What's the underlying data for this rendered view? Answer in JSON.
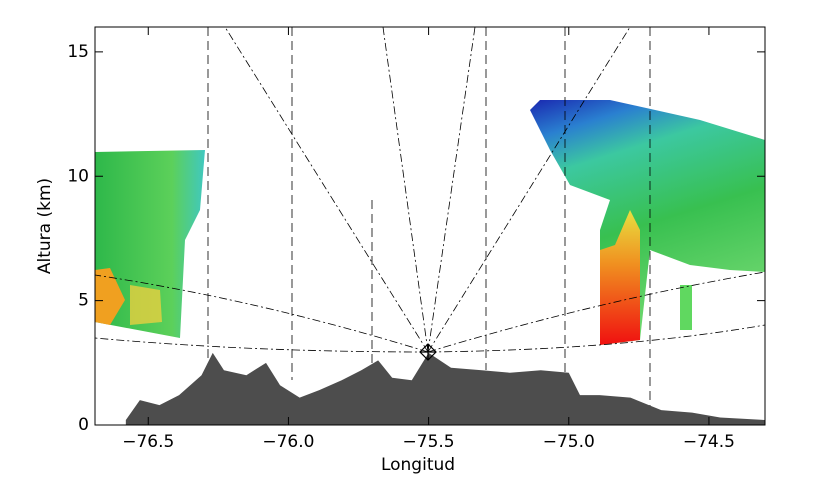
{
  "chart_data": {
    "type": "area",
    "xlabel": "Longitud",
    "ylabel": "Altura (km)",
    "xlim": [
      -76.69,
      -74.3
    ],
    "ylim": [
      0,
      16
    ],
    "xticks": [
      {
        "value": -76.5,
        "label": "−76.5"
      },
      {
        "value": -76.0,
        "label": "−76.0"
      },
      {
        "value": -75.5,
        "label": "−75.5"
      },
      {
        "value": -75.0,
        "label": "−75.0"
      },
      {
        "value": -74.5,
        "label": "−74.5"
      }
    ],
    "yticks": [
      0,
      5,
      10,
      15
    ],
    "series": [
      {
        "color": "#4d4d4d",
        "x": [
          -76.58,
          -76.53,
          -76.46,
          -76.39,
          -76.31,
          -76.27,
          -76.23,
          -76.15,
          -76.08,
          -76.03,
          -75.96,
          -75.89,
          -75.81,
          -75.74,
          -75.68,
          -75.63,
          -75.56,
          -75.5,
          -75.42,
          -75.31,
          -75.21,
          -75.1,
          -75.0,
          -74.96,
          -74.89,
          -74.78,
          -74.67,
          -74.56,
          -74.46,
          -74.3
        ],
        "values": [
          0.2,
          1.0,
          0.8,
          1.2,
          2.0,
          2.9,
          2.2,
          2.0,
          2.5,
          1.6,
          1.1,
          1.4,
          1.8,
          2.2,
          2.6,
          1.9,
          1.8,
          2.9,
          2.3,
          2.2,
          2.1,
          2.2,
          2.1,
          1.2,
          1.2,
          1.1,
          0.6,
          0.5,
          0.3,
          0.2
        ]
      }
    ]
  }
}
